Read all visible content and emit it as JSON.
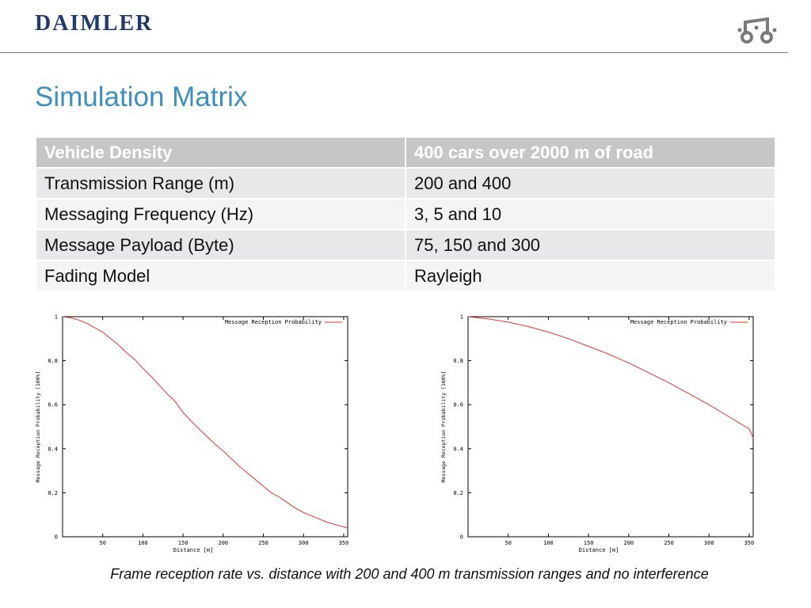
{
  "header": {
    "logo_text": "DAIMLER",
    "brand_icon": "daimler-car-icon"
  },
  "title": "Simulation Matrix",
  "matrix": {
    "header": [
      "Vehicle Density",
      "400 cars over 2000 m of road"
    ],
    "rows": [
      [
        "Transmission Range (m)",
        "200 and 400"
      ],
      [
        "Messaging Frequency (Hz)",
        "3, 5 and 10"
      ],
      [
        "Message Payload (Byte)",
        "75, 150 and 300"
      ],
      [
        "Fading Model",
        "Rayleigh"
      ]
    ]
  },
  "colors": {
    "title": "#3d8fbf",
    "logo": "#1f3a6b",
    "table_header_bg": "#c6c6c6",
    "series_line": "#e8332a"
  },
  "chart_data": [
    {
      "type": "line",
      "title": "",
      "xlabel": "Distance [m]",
      "ylabel": "Message Reception Probability [100%]",
      "xlim": [
        0,
        355
      ],
      "ylim": [
        0,
        1
      ],
      "xticks": [
        50,
        100,
        150,
        200,
        250,
        300,
        350
      ],
      "yticks": [
        0,
        0.2,
        0.4,
        0.6,
        0.8,
        1
      ],
      "ytick_labels": [
        "0",
        "0.2",
        "0.4",
        "0.6",
        "0.8",
        "1"
      ],
      "legend": "top-right",
      "grid": false,
      "series": [
        {
          "name": "Message Reception Probability",
          "x": [
            0,
            10,
            20,
            30,
            40,
            50,
            60,
            70,
            80,
            90,
            100,
            110,
            120,
            130,
            140,
            150,
            160,
            170,
            180,
            190,
            200,
            210,
            220,
            230,
            240,
            250,
            260,
            270,
            280,
            290,
            300,
            310,
            320,
            330,
            340,
            350,
            355
          ],
          "y": [
            1.0,
            0.995,
            0.985,
            0.97,
            0.95,
            0.93,
            0.9,
            0.87,
            0.835,
            0.805,
            0.765,
            0.73,
            0.69,
            0.65,
            0.615,
            0.565,
            0.525,
            0.49,
            0.455,
            0.42,
            0.39,
            0.355,
            0.32,
            0.29,
            0.26,
            0.23,
            0.2,
            0.18,
            0.155,
            0.13,
            0.11,
            0.095,
            0.08,
            0.065,
            0.055,
            0.045,
            0.04
          ]
        }
      ]
    },
    {
      "type": "line",
      "title": "",
      "xlabel": "Distance [m]",
      "ylabel": "Message Reception Probability [100%]",
      "xlim": [
        0,
        355
      ],
      "ylim": [
        0,
        1
      ],
      "xticks": [
        50,
        100,
        150,
        200,
        250,
        300,
        350
      ],
      "yticks": [
        0,
        0.2,
        0.4,
        0.6,
        0.8,
        1
      ],
      "ytick_labels": [
        "0",
        "0.2",
        "0.4",
        "0.6",
        "0.8",
        "1"
      ],
      "legend": "top-right",
      "grid": false,
      "series": [
        {
          "name": "Message Reception Probability",
          "x": [
            0,
            25,
            50,
            75,
            100,
            125,
            150,
            175,
            200,
            225,
            250,
            275,
            300,
            325,
            350,
            355
          ],
          "y": [
            1.0,
            0.99,
            0.975,
            0.955,
            0.93,
            0.9,
            0.865,
            0.83,
            0.79,
            0.745,
            0.7,
            0.65,
            0.6,
            0.545,
            0.49,
            0.45
          ]
        }
      ]
    }
  ],
  "caption": "Frame reception rate vs. distance with 200 and 400 m transmission ranges and no interference"
}
